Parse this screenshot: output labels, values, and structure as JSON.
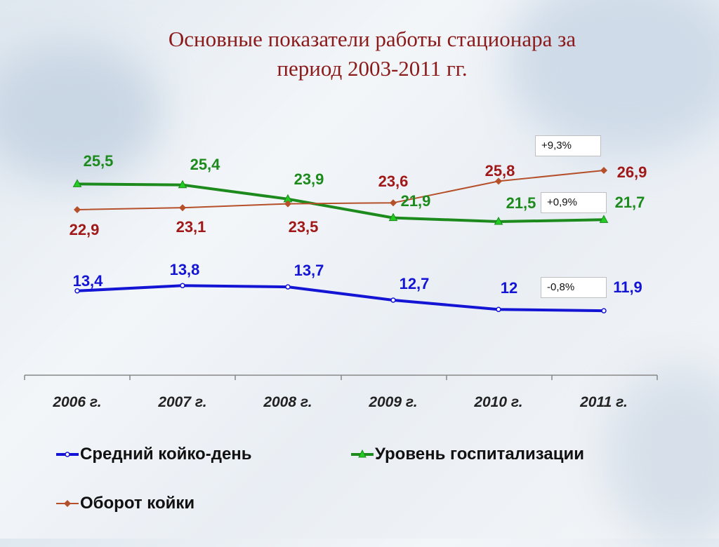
{
  "title_lines": [
    "Основные показатели работы стационара за",
    "период 2003-2011 гг."
  ],
  "chart_data": {
    "type": "line",
    "categories": [
      "2006 г.",
      "2007 г.",
      "2008 г.",
      "2009 г.",
      "2010 г.",
      "2011 г."
    ],
    "series": [
      {
        "name": "Средний койко-день",
        "color": "#1414d4",
        "marker": "circle",
        "values": [
          13.4,
          13.8,
          13.7,
          12.7,
          12,
          11.9
        ],
        "labels": [
          "13,4",
          "13,8",
          "13,7",
          "12,7",
          "12",
          "11,9"
        ]
      },
      {
        "name": "Уровень госпитализации",
        "color": "#1c8a1c",
        "marker": "triangle",
        "values": [
          25.5,
          25.4,
          23.9,
          21.9,
          21.5,
          21.7
        ],
        "labels": [
          "25,5",
          "25,4",
          "23,9",
          "21,9",
          "21,5",
          "21,7"
        ]
      },
      {
        "name": "Оборот койки",
        "color": "#b5502a",
        "marker": "diamond",
        "label_color": "#a01818",
        "values": [
          22.9,
          23.1,
          23.5,
          23.6,
          25.8,
          26.9
        ],
        "labels": [
          "22,9",
          "23,1",
          "23,5",
          "23,6",
          "25,8",
          "26,9"
        ]
      }
    ],
    "annotations": [
      "+9,3%",
      "+0,9%",
      "-0,8%"
    ],
    "legend_position": "bottom",
    "grid": false
  }
}
